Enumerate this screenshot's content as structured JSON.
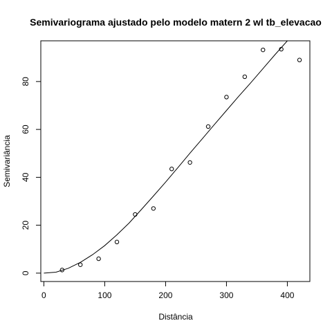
{
  "chart_data": {
    "type": "scatter",
    "title": "Semivariograma ajustado pelo modelo matern 2 wl tb_elevacao",
    "xlabel": "Distância",
    "ylabel": "Semivariância",
    "xlim": [
      -5,
      437
    ],
    "ylim": [
      -3.5,
      97
    ],
    "xticks": [
      0,
      100,
      200,
      300,
      400
    ],
    "yticks": [
      0,
      20,
      40,
      60,
      80
    ],
    "grid": false,
    "legend": "none",
    "series": [
      {
        "kind": "points",
        "x": [
          30,
          60,
          90,
          120,
          150,
          180,
          210,
          240,
          270,
          300,
          330,
          360,
          390,
          420
        ],
        "y": [
          1.3,
          3.5,
          6.0,
          13.0,
          24.5,
          27.0,
          43.5,
          46.2,
          61.2,
          73.5,
          82.0,
          93.2,
          93.5,
          89.0
        ]
      },
      {
        "kind": "fitted-curve",
        "x": [
          0,
          20,
          40,
          60,
          80,
          100,
          120,
          140,
          160,
          180,
          200,
          220,
          240,
          260,
          280,
          300,
          320,
          340,
          360,
          380,
          400
        ],
        "y": [
          0,
          0.4,
          2.0,
          4.5,
          7.7,
          11.5,
          16.0,
          20.9,
          26.5,
          32.2,
          38.0,
          44.0,
          50.1,
          56.0,
          62.0,
          67.9,
          73.8,
          79.5,
          85.4,
          91.3,
          97.0
        ]
      }
    ],
    "colors": {
      "points": "#000000",
      "curve": "#000000",
      "frame": "#000000"
    }
  }
}
